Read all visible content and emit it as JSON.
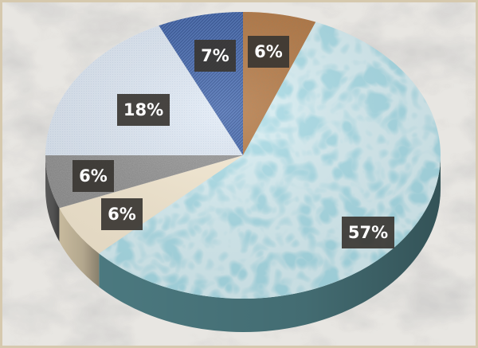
{
  "chart_data": {
    "type": "pie",
    "three_d": true,
    "start_angle_deg": -90,
    "direction": "clockwise",
    "slices": [
      {
        "label": "6%",
        "value": 6,
        "color": "#b8763f",
        "texture": "cork"
      },
      {
        "label": "57%",
        "value": 57,
        "color": "#a9dde8",
        "texture": "water-drops"
      },
      {
        "label": "6%",
        "value": 6,
        "color": "#f6ead2",
        "texture": "parchment"
      },
      {
        "label": "6%",
        "value": 6,
        "color": "#9a9a9a",
        "texture": "granite"
      },
      {
        "label": "18%",
        "value": 18,
        "color": "#dce8f5",
        "texture": "light-fabric"
      },
      {
        "label": "7%",
        "value": 7,
        "color": "#4a6fb5",
        "texture": "denim"
      }
    ],
    "data_labels": "percent",
    "legend": "none",
    "background": "marble"
  },
  "colors": {
    "background": "#e4e2de",
    "frame": "#d8ccb3",
    "label_box": "#3a3632"
  }
}
